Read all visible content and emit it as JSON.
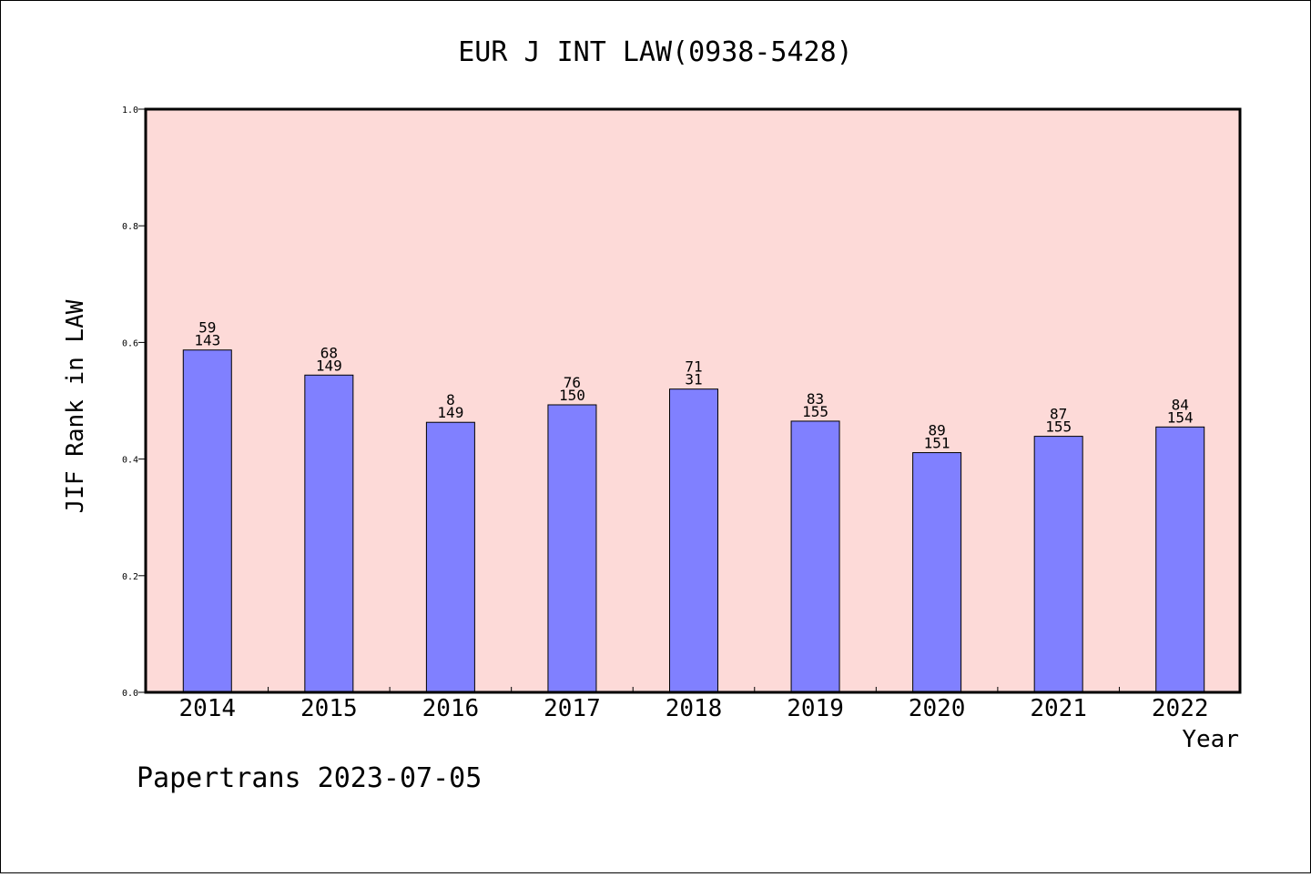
{
  "chart_data": {
    "type": "bar",
    "title": "EUR J INT LAW(0938-5428)",
    "xlabel": "Year",
    "ylabel": "JIF Rank in LAW",
    "ylim": [
      0,
      1.0
    ],
    "yticks": [
      "0.0",
      "0.2",
      "0.4",
      "0.6",
      "0.8",
      "1.0"
    ],
    "categories": [
      "2014",
      "2015",
      "2016",
      "2017",
      "2018",
      "2019",
      "2020",
      "2021",
      "2022"
    ],
    "values": [
      0.587,
      0.544,
      0.463,
      0.493,
      0.52,
      0.465,
      0.411,
      0.439,
      0.455
    ],
    "labels_top": [
      "59",
      "68",
      "8",
      "76",
      "71",
      "83",
      "89",
      "87",
      "84"
    ],
    "labels_bottom": [
      "143",
      "149",
      "149",
      "150",
      "31",
      "155",
      "151",
      "155",
      "154"
    ],
    "colors": {
      "plot_background": "#FDDAD8",
      "bar": "#8080FF"
    },
    "grid": false
  },
  "footer": "Papertrans 2023-07-05"
}
